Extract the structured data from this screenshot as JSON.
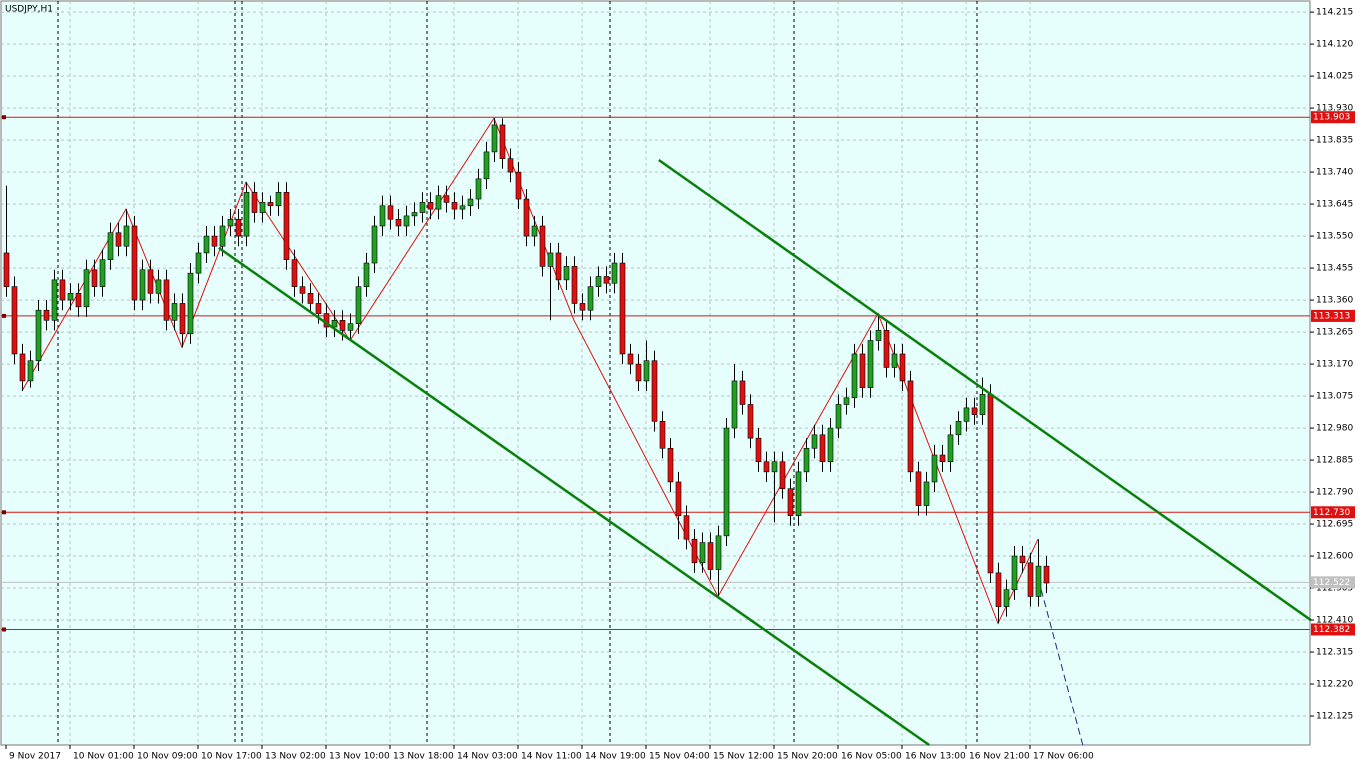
{
  "chart_data": {
    "type": "candlestick",
    "title": "USDJPY,H1",
    "categories": [
      "9 Nov 2017",
      null,
      null,
      null,
      null,
      null,
      null,
      null,
      "10 Nov 01:00",
      null,
      null,
      null,
      null,
      null,
      null,
      null,
      "10 Nov 09:00",
      null,
      null,
      null,
      null,
      null,
      null,
      null,
      "10 Nov 17:00",
      null,
      null,
      null,
      null,
      null,
      null,
      null,
      "13 Nov 02:00",
      null,
      null,
      null,
      null,
      null,
      null,
      null,
      "13 Nov 10:00",
      null,
      null,
      null,
      null,
      null,
      null,
      null,
      "13 Nov 18:00",
      null,
      null,
      null,
      null,
      null,
      null,
      null,
      "14 Nov 03:00",
      null,
      null,
      null,
      null,
      null,
      null,
      null,
      "14 Nov 11:00",
      null,
      null,
      null,
      null,
      null,
      null,
      null,
      "14 Nov 19:00",
      null,
      null,
      null,
      null,
      null,
      null,
      null,
      "15 Nov 04:00",
      null,
      null,
      null,
      null,
      null,
      null,
      null,
      "15 Nov 12:00",
      null,
      null,
      null,
      null,
      null,
      null,
      null,
      "15 Nov 20:00",
      null,
      null,
      null,
      null,
      null,
      null,
      null,
      "16 Nov 05:00",
      null,
      null,
      null,
      null,
      null,
      null,
      null,
      "16 Nov 13:00",
      null,
      null,
      null,
      null,
      null,
      null,
      null,
      "16 Nov 21:00",
      null,
      null,
      null,
      null,
      null,
      null,
      null,
      "17 Nov 06:00",
      null,
      null
    ],
    "open": [
      113.5,
      113.4,
      113.2,
      113.12,
      113.18,
      113.33,
      113.3,
      113.42,
      113.36,
      113.38,
      113.34,
      113.45,
      113.4,
      113.48,
      113.56,
      113.52,
      113.58,
      113.36,
      113.45,
      113.38,
      113.42,
      113.3,
      113.35,
      113.26,
      113.44,
      113.5,
      113.55,
      113.52,
      113.58,
      113.6,
      113.55,
      113.68,
      113.62,
      113.65,
      113.64,
      113.68,
      113.48,
      113.4,
      113.38,
      113.35,
      113.32,
      113.28,
      113.3,
      113.27,
      113.29,
      113.4,
      113.47,
      113.58,
      113.64,
      113.6,
      113.58,
      113.61,
      113.62,
      113.65,
      113.63,
      113.67,
      113.65,
      113.63,
      113.64,
      113.66,
      113.72,
      113.8,
      113.88,
      113.78,
      113.74,
      113.66,
      113.55,
      113.58,
      113.46,
      113.5,
      113.42,
      113.46,
      113.35,
      113.33,
      113.4,
      113.43,
      113.41,
      113.47,
      113.2,
      113.17,
      113.12,
      113.18,
      113.0,
      112.92,
      112.82,
      112.72,
      112.65,
      112.58,
      112.64,
      112.56,
      112.66,
      112.98,
      113.12,
      113.05,
      112.95,
      112.88,
      112.85,
      112.88,
      112.8,
      112.72,
      112.85,
      112.92,
      112.96,
      112.88,
      112.98,
      113.05,
      113.07,
      113.2,
      113.1,
      113.24,
      113.27,
      113.16,
      113.2,
      113.12,
      112.85,
      112.75,
      112.82,
      112.9,
      112.88,
      112.96,
      113.0,
      113.04,
      113.02,
      113.08,
      112.55,
      112.45,
      112.5,
      112.6,
      112.58,
      112.48,
      112.57
    ],
    "high": [
      113.7,
      113.43,
      113.23,
      113.21,
      113.36,
      113.36,
      113.45,
      113.45,
      113.41,
      113.41,
      113.48,
      113.48,
      113.51,
      113.59,
      113.59,
      113.63,
      113.61,
      113.48,
      113.48,
      113.45,
      113.45,
      113.38,
      113.38,
      113.47,
      113.53,
      113.58,
      113.58,
      113.61,
      113.63,
      113.63,
      113.71,
      113.71,
      113.68,
      113.67,
      113.71,
      113.71,
      113.51,
      113.43,
      113.41,
      113.38,
      113.35,
      113.33,
      113.33,
      113.32,
      113.43,
      113.5,
      113.61,
      113.67,
      113.67,
      113.63,
      113.64,
      113.65,
      113.68,
      113.68,
      113.7,
      113.7,
      113.68,
      113.67,
      113.69,
      113.75,
      113.83,
      113.9,
      113.9,
      113.81,
      113.77,
      113.69,
      113.61,
      113.61,
      113.53,
      113.53,
      113.49,
      113.49,
      113.38,
      113.43,
      113.46,
      113.46,
      113.5,
      113.5,
      113.23,
      113.2,
      113.24,
      113.21,
      113.03,
      112.95,
      112.85,
      112.75,
      112.68,
      112.67,
      112.67,
      112.69,
      113.01,
      113.17,
      113.15,
      113.08,
      112.98,
      112.91,
      112.91,
      112.91,
      112.83,
      112.88,
      112.95,
      112.99,
      112.99,
      113.01,
      113.08,
      113.1,
      113.23,
      113.23,
      113.27,
      113.32,
      113.3,
      113.23,
      113.23,
      113.15,
      112.88,
      112.85,
      112.93,
      112.93,
      112.99,
      113.03,
      113.07,
      113.07,
      113.13,
      113.11,
      112.58,
      112.53,
      112.63,
      112.63,
      112.61,
      112.65,
      112.6
    ],
    "low": [
      113.37,
      113.17,
      113.09,
      113.1,
      113.15,
      113.27,
      113.27,
      113.33,
      113.33,
      113.31,
      113.31,
      113.37,
      113.37,
      113.45,
      113.49,
      113.49,
      113.33,
      113.33,
      113.35,
      113.35,
      113.27,
      113.27,
      113.22,
      113.23,
      113.41,
      113.47,
      113.49,
      113.49,
      113.55,
      113.52,
      113.52,
      113.59,
      113.59,
      113.61,
      113.61,
      113.45,
      113.37,
      113.35,
      113.32,
      113.29,
      113.25,
      113.25,
      113.24,
      113.24,
      113.26,
      113.37,
      113.44,
      113.55,
      113.57,
      113.55,
      113.55,
      113.58,
      113.59,
      113.6,
      113.6,
      113.62,
      113.6,
      113.6,
      113.61,
      113.63,
      113.69,
      113.77,
      113.75,
      113.71,
      113.63,
      113.52,
      113.52,
      113.43,
      113.3,
      113.39,
      113.39,
      113.32,
      113.3,
      113.3,
      113.37,
      113.38,
      113.38,
      113.17,
      113.14,
      113.09,
      113.09,
      112.97,
      112.89,
      112.79,
      112.65,
      112.62,
      112.55,
      112.55,
      112.53,
      112.48,
      112.63,
      112.95,
      113.02,
      112.92,
      112.85,
      112.82,
      112.7,
      112.77,
      112.69,
      112.69,
      112.82,
      112.89,
      112.85,
      112.85,
      112.95,
      113.02,
      113.04,
      113.07,
      113.07,
      113.21,
      113.13,
      113.13,
      113.09,
      112.82,
      112.72,
      112.72,
      112.79,
      112.85,
      112.85,
      112.93,
      112.97,
      112.99,
      112.99,
      112.52,
      112.4,
      112.42,
      112.47,
      112.55,
      112.45,
      112.45,
      112.49
    ],
    "close": [
      113.4,
      113.2,
      113.12,
      113.18,
      113.33,
      113.3,
      113.42,
      113.36,
      113.38,
      113.34,
      113.45,
      113.4,
      113.48,
      113.56,
      113.52,
      113.58,
      113.36,
      113.45,
      113.38,
      113.42,
      113.3,
      113.35,
      113.26,
      113.44,
      113.5,
      113.55,
      113.52,
      113.58,
      113.6,
      113.55,
      113.68,
      113.62,
      113.65,
      113.64,
      113.68,
      113.48,
      113.4,
      113.38,
      113.35,
      113.32,
      113.28,
      113.3,
      113.27,
      113.29,
      113.4,
      113.47,
      113.58,
      113.64,
      113.6,
      113.58,
      113.61,
      113.62,
      113.65,
      113.63,
      113.67,
      113.65,
      113.63,
      113.64,
      113.66,
      113.72,
      113.8,
      113.88,
      113.78,
      113.74,
      113.66,
      113.55,
      113.58,
      113.46,
      113.5,
      113.42,
      113.46,
      113.35,
      113.33,
      113.4,
      113.43,
      113.41,
      113.47,
      113.2,
      113.17,
      113.12,
      113.18,
      113.0,
      112.92,
      112.82,
      112.72,
      112.65,
      112.58,
      112.64,
      112.56,
      112.66,
      112.98,
      113.12,
      113.05,
      112.95,
      112.88,
      112.85,
      112.88,
      112.8,
      112.72,
      112.85,
      112.92,
      112.96,
      112.88,
      112.98,
      113.05,
      113.07,
      113.2,
      113.1,
      113.24,
      113.27,
      113.16,
      113.2,
      113.12,
      112.85,
      112.75,
      112.82,
      112.9,
      112.88,
      112.96,
      113.0,
      113.04,
      113.02,
      113.08,
      112.55,
      112.45,
      112.5,
      112.6,
      112.58,
      112.48,
      112.57,
      112.52
    ],
    "up_color": "#22a022",
    "down_color": "#e01010",
    "ylim": [
      112.039,
      114.251
    ],
    "yticks": [
      114.215,
      {
        "value": 114.12,
        "label": "114.120"
      },
      114.025,
      {
        "value": 113.93,
        "label": "113.930"
      },
      113.835,
      {
        "value": 113.74,
        "label": "113.740"
      },
      113.645,
      {
        "value": 113.55,
        "label": "113.550"
      },
      113.455,
      {
        "value": 113.36,
        "label": "113.360"
      },
      113.265,
      {
        "value": 113.17,
        "label": "113.170"
      },
      113.075,
      {
        "value": 112.98,
        "label": "112.980"
      },
      112.885,
      {
        "value": 112.79,
        "label": "112.790"
      },
      112.695,
      {
        "value": 112.6,
        "label": "112.600"
      },
      112.505,
      {
        "value": 112.41,
        "label": "112.410"
      },
      112.315,
      {
        "value": 112.22,
        "label": "112.220"
      },
      112.125
    ],
    "grid": true,
    "levels": [
      113.903,
      113.313,
      {
        "value": 112.73,
        "label": "112.730"
      },
      112.382
    ],
    "level_color": "#e01010",
    "current_price": 112.522,
    "zigzag": {
      "color": "#e01010",
      "x": [
        2,
        15,
        22,
        30,
        43,
        61,
        71,
        89,
        109,
        124,
        129
      ],
      "y": [
        113.09,
        113.63,
        113.22,
        113.71,
        113.24,
        113.9,
        113.3,
        112.48,
        113.32,
        112.4,
        112.65
      ]
    },
    "trendlines": [
      {
        "color": "#0a800a",
        "x": [
          26.6,
          115.4
        ],
        "y": [
          113.515,
          112.039
        ]
      },
      {
        "color": "#0a800a",
        "x": [
          81.6,
          163.1
        ],
        "y": [
          113.776,
          112.41
        ]
      }
    ],
    "projection": {
      "color": "#1a2a80",
      "x": [
        129.4,
        134.6
      ],
      "y": [
        112.5,
        112.039
      ]
    }
  }
}
